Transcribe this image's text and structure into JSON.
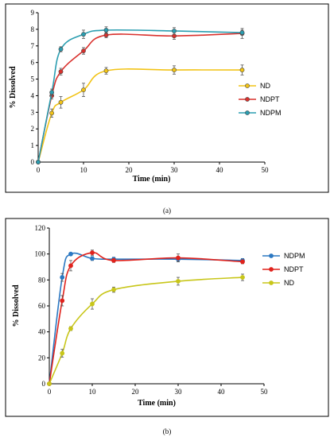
{
  "chart_data": [
    {
      "type": "line",
      "caption": "(a)",
      "xlabel": "Time (min)",
      "ylabel": "% Dissolved",
      "xlim": [
        0,
        50
      ],
      "ylim": [
        0,
        9
      ],
      "x_ticks": [
        0,
        10,
        20,
        30,
        40,
        50
      ],
      "y_ticks": [
        0,
        1,
        2,
        3,
        4,
        5,
        6,
        7,
        8,
        9
      ],
      "legend_position": "right",
      "x": [
        0,
        3,
        5,
        10,
        15,
        30,
        45
      ],
      "series": [
        {
          "name": "ND",
          "color": "#f2c316",
          "values": [
            0,
            2.95,
            3.6,
            4.35,
            5.5,
            5.55,
            5.55
          ],
          "errors": [
            0,
            0.25,
            0.35,
            0.4,
            0.2,
            0.25,
            0.3
          ]
        },
        {
          "name": "NDPT",
          "color": "#d9302c",
          "values": [
            0,
            4.0,
            5.45,
            6.7,
            7.65,
            7.6,
            7.75
          ],
          "errors": [
            0,
            0.2,
            0.2,
            0.2,
            0.15,
            0.2,
            0.3
          ]
        },
        {
          "name": "NDPM",
          "color": "#2a9db0",
          "values": [
            0,
            4.2,
            6.8,
            7.7,
            7.95,
            7.9,
            7.8
          ],
          "errors": [
            0,
            0.2,
            0.15,
            0.25,
            0.2,
            0.2,
            0.15
          ]
        }
      ]
    },
    {
      "type": "line",
      "caption": "(b)",
      "xlabel": "Time (min)",
      "ylabel": "% Dissolved",
      "xlim": [
        0,
        50
      ],
      "ylim": [
        0,
        120
      ],
      "x_ticks": [
        0,
        10,
        20,
        30,
        40,
        50
      ],
      "y_ticks": [
        0,
        20,
        40,
        60,
        80,
        100,
        120
      ],
      "legend_position": "right",
      "x": [
        0,
        3,
        5,
        10,
        15,
        30,
        45
      ],
      "series": [
        {
          "name": "NDPM",
          "color": "#2b78c2",
          "values": [
            0,
            82,
            100,
            96.5,
            96,
            96,
            95
          ],
          "errors": [
            0,
            3,
            1,
            1.5,
            1.5,
            2,
            1.5
          ]
        },
        {
          "name": "NDPT",
          "color": "#e0221c",
          "values": [
            0,
            64,
            91,
            101,
            95,
            97,
            94
          ],
          "errors": [
            0,
            4,
            4,
            2,
            1.5,
            3,
            1.5
          ]
        },
        {
          "name": "ND",
          "color": "#c8c619",
          "values": [
            0,
            23.5,
            42.5,
            61.5,
            72.5,
            79,
            82
          ],
          "errors": [
            0,
            3,
            1.5,
            4,
            2,
            3,
            2.5
          ]
        }
      ]
    }
  ]
}
